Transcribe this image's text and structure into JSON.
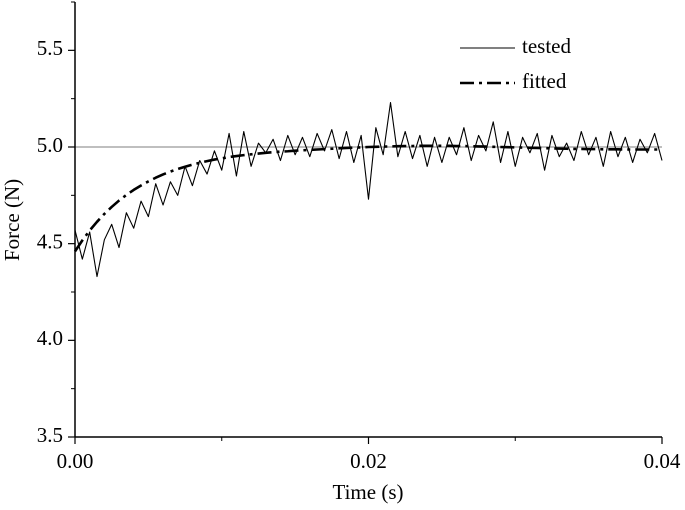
{
  "chart_data": {
    "type": "line",
    "xlabel": "Time (s)",
    "ylabel": "Force (N)",
    "x": [
      0,
      0.0005,
      0.001,
      0.0015,
      0.002,
      0.0025,
      0.003,
      0.0035,
      0.004,
      0.0045,
      0.005,
      0.0055,
      0.006,
      0.0065,
      0.007,
      0.0075,
      0.008,
      0.0085,
      0.009,
      0.0095,
      0.01,
      0.0105,
      0.011,
      0.0115,
      0.012,
      0.0125,
      0.013,
      0.0135,
      0.014,
      0.0145,
      0.015,
      0.0155,
      0.016,
      0.0165,
      0.017,
      0.0175,
      0.018,
      0.0185,
      0.019,
      0.0195,
      0.02,
      0.0205,
      0.021,
      0.0215,
      0.022,
      0.0225,
      0.023,
      0.0235,
      0.024,
      0.0245,
      0.025,
      0.0255,
      0.026,
      0.0265,
      0.027,
      0.0275,
      0.028,
      0.0285,
      0.029,
      0.0295,
      0.03,
      0.0305,
      0.031,
      0.0315,
      0.032,
      0.0325,
      0.033,
      0.0335,
      0.034,
      0.0345,
      0.035,
      0.0355,
      0.036,
      0.0365,
      0.037,
      0.0375,
      0.038,
      0.0385,
      0.039,
      0.0395,
      0.04
    ],
    "series": [
      {
        "name": "tested",
        "color": "#000000",
        "style": "solid",
        "values": [
          4.57,
          4.42,
          4.56,
          4.33,
          4.52,
          4.6,
          4.48,
          4.66,
          4.58,
          4.72,
          4.64,
          4.81,
          4.7,
          4.82,
          4.75,
          4.9,
          4.8,
          4.93,
          4.86,
          4.98,
          4.88,
          5.07,
          4.85,
          5.08,
          4.9,
          5.02,
          4.97,
          5.04,
          4.93,
          5.06,
          4.96,
          5.05,
          4.95,
          5.07,
          4.98,
          5.09,
          4.94,
          5.08,
          4.92,
          5.06,
          4.73,
          5.1,
          4.96,
          5.23,
          4.95,
          5.08,
          4.94,
          5.06,
          4.9,
          5.05,
          4.92,
          5.05,
          4.96,
          5.1,
          4.93,
          5.06,
          4.98,
          5.13,
          4.92,
          5.08,
          4.9,
          5.05,
          4.97,
          5.07,
          4.88,
          5.06,
          4.95,
          5.02,
          4.93,
          5.08,
          4.96,
          5.05,
          4.9,
          5.08,
          4.95,
          5.05,
          4.92,
          5.04,
          4.97,
          5.07,
          4.93
        ]
      },
      {
        "name": "fitted",
        "color": "#000000",
        "style": "dashdot",
        "values": [
          4.46,
          4.517,
          4.568,
          4.613,
          4.654,
          4.69,
          4.723,
          4.752,
          4.778,
          4.801,
          4.822,
          4.841,
          4.858,
          4.873,
          4.886,
          4.898,
          4.909,
          4.918,
          4.927,
          4.935,
          4.941,
          4.948,
          4.953,
          4.958,
          4.962,
          4.966,
          4.97,
          4.973,
          4.976,
          4.978,
          4.981,
          4.983,
          4.985,
          4.987,
          4.989,
          4.991,
          4.993,
          4.995,
          4.997,
          4.998,
          5.0,
          5.001,
          5.002,
          5.003,
          5.004,
          5.005,
          5.005,
          5.006,
          5.006,
          5.006,
          5.006,
          5.006,
          5.005,
          5.005,
          5.004,
          5.003,
          5.002,
          5.001,
          5.0,
          4.999,
          4.998,
          4.997,
          4.996,
          4.995,
          4.994,
          4.993,
          4.992,
          4.991,
          4.99,
          4.99,
          4.989,
          4.989,
          4.988,
          4.988,
          4.988,
          4.987,
          4.987,
          4.987,
          4.987,
          4.987,
          4.987
        ]
      }
    ],
    "xlim": [
      0,
      0.04
    ],
    "ylim": [
      3.5,
      5.75
    ],
    "xticks": [
      {
        "value": 0,
        "label": "0.00"
      },
      0.02,
      0.04
    ],
    "yticks": [
      3.5,
      {
        "value": 4,
        "label": "4.0"
      },
      4.5,
      {
        "value": 5,
        "label": "5.0"
      },
      5.5
    ],
    "xminor_ticks": [
      0.01,
      0.03
    ],
    "yminor_ticks": [
      3.75,
      4.25,
      4.75,
      5.25,
      5.75
    ],
    "hline": {
      "value": 5,
      "color": "#999999"
    },
    "legend": "upper right"
  }
}
